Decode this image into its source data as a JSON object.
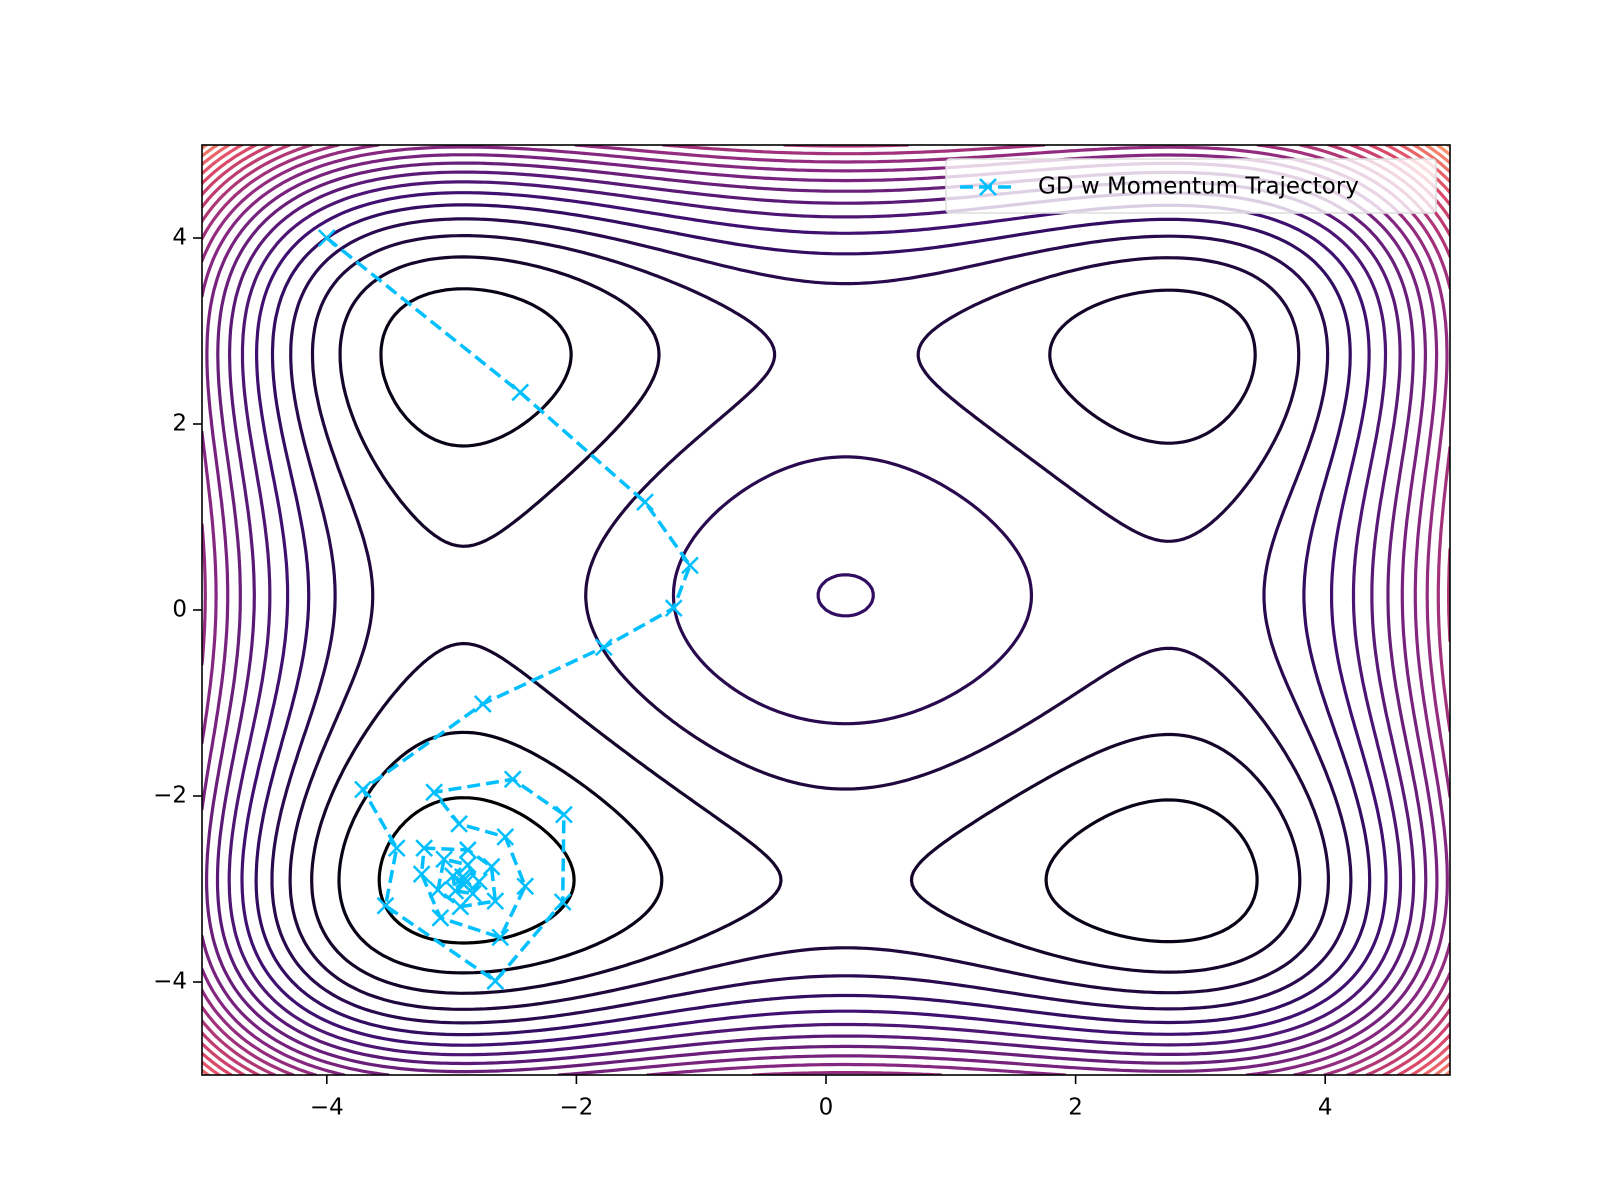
{
  "chart_data": {
    "type": "contour",
    "colormap": "magma",
    "levels": [
      -68.5,
      -54.8,
      -41.1,
      -27.4,
      -13.7,
      0,
      13.7,
      27.4,
      41.1,
      54.8,
      68.5,
      82.2,
      95.9,
      109.6,
      123.3,
      137,
      150.7,
      164.4,
      178.1,
      191.8,
      205.5,
      219.2,
      232.9,
      246.6
    ],
    "xlim": [
      -5,
      5
    ],
    "ylim": [
      -5,
      5
    ],
    "xticks": [
      {
        "value": -4,
        "label": "−4"
      },
      {
        "value": -2,
        "label": "−2"
      },
      0,
      2,
      4
    ],
    "yticks": [
      {
        "value": -4,
        "label": "−4"
      },
      {
        "value": -2,
        "label": "−2"
      },
      0,
      2,
      4
    ],
    "legend": "upper right",
    "series": [
      {
        "name": "GD w Momentum Trajectory",
        "color": "#00bfff",
        "x": [
          -4.0,
          -2.45,
          -1.45,
          -1.09,
          -1.22,
          -1.78,
          -2.75,
          -3.71,
          -3.44,
          -3.53,
          -2.65,
          -2.11,
          -2.1,
          -2.51,
          -3.14,
          -2.94,
          -2.57,
          -2.41,
          -2.61,
          -3.09,
          -3.24,
          -3.22,
          -2.87,
          -2.68,
          -2.65,
          -2.93,
          -3.11,
          -3.06,
          -2.87,
          -2.78,
          -2.83,
          -2.97,
          -2.99,
          -2.91,
          -2.9,
          -2.9
        ],
        "values": [
          4.0,
          2.34,
          1.16,
          0.48,
          0.02,
          -0.4,
          -1.01,
          -1.93,
          -2.56,
          -3.18,
          -3.99,
          -3.14,
          -2.2,
          -1.82,
          -1.96,
          -2.3,
          -2.44,
          -2.97,
          -3.52,
          -3.31,
          -2.84,
          -2.56,
          -2.58,
          -2.76,
          -3.13,
          -3.19,
          -3.01,
          -2.68,
          -2.74,
          -2.92,
          -3.05,
          -3.02,
          -2.86,
          -2.87,
          -2.95,
          -2.9
        ]
      }
    ]
  }
}
